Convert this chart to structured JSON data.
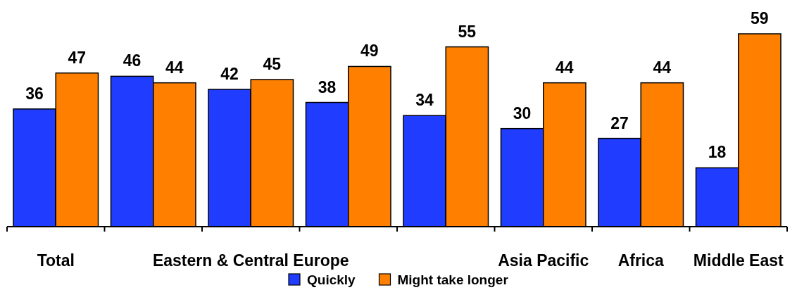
{
  "chart_data": {
    "type": "bar",
    "categories": [
      "Total",
      null,
      "Eastern & Central Europe",
      null,
      null,
      "Asia Pacific",
      "Africa",
      "Middle East"
    ],
    "series": [
      {
        "name": "Quickly",
        "color": "#1f3cff",
        "values": [
          36,
          46,
          42,
          38,
          34,
          30,
          27,
          18
        ]
      },
      {
        "name": "Might take longer",
        "color": "#ff8000",
        "values": [
          47,
          44,
          45,
          49,
          55,
          44,
          44,
          59
        ]
      }
    ],
    "data_labels": true,
    "legend": "bottom"
  }
}
